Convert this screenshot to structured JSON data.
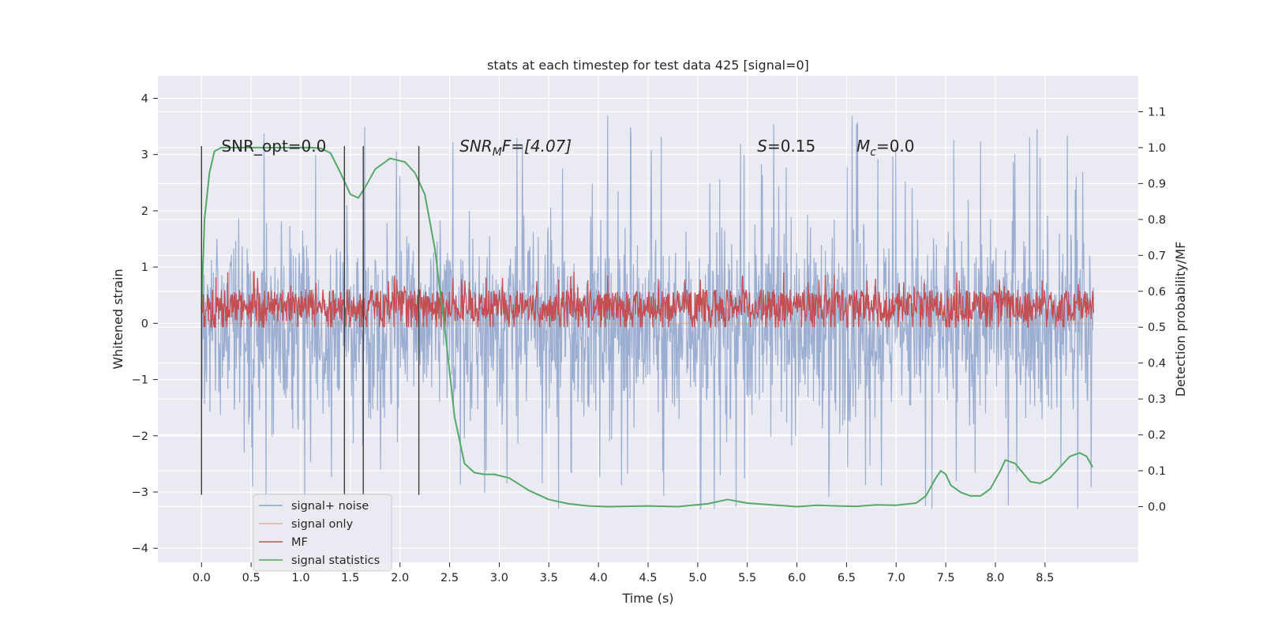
{
  "chart_data": {
    "type": "line",
    "title": "stats at each timestep for test data 425 [signal=0]",
    "xlabel": "Time (s)",
    "ylabel": "Whitened strain",
    "y2label": "Detection probability/MF",
    "xlim": [
      -0.44,
      9.44
    ],
    "ylim": [
      -4.25,
      4.4
    ],
    "y2lim": [
      -0.155,
      1.2
    ],
    "x_ticks": [
      0.0,
      0.5,
      1.0,
      1.5,
      2.0,
      2.5,
      3.0,
      3.5,
      4.0,
      4.5,
      5.0,
      5.5,
      6.0,
      6.5,
      7.0,
      7.5,
      8.0,
      8.5
    ],
    "x_tick_labels": [
      "0.0",
      "0.5",
      "1.0",
      "1.5",
      "2.0",
      "2.5",
      "3.0",
      "3.5",
      "4.0",
      "4.5",
      "5.0",
      "5.5",
      "6.0",
      "6.5",
      "7.0",
      "7.5",
      "8.0",
      "8.5"
    ],
    "y_ticks": [
      4,
      3,
      2,
      1,
      0,
      -1,
      -2,
      -3,
      -4
    ],
    "y_tick_labels": [
      "4",
      "3",
      "2",
      "1",
      "0",
      "−1",
      "−2",
      "−3",
      "−4"
    ],
    "y2_ticks": [
      1.1,
      1.0,
      0.9,
      0.8,
      0.7,
      0.6,
      0.5,
      0.4,
      0.3,
      0.2,
      0.1,
      0.0
    ],
    "y2_tick_labels": [
      "1.1",
      "1.0",
      "0.9",
      "0.8",
      "0.7",
      "0.6",
      "0.5",
      "0.4",
      "0.3",
      "0.2",
      "0.1",
      "0.0"
    ],
    "grid": true,
    "legend_position": "lower-left",
    "vertical_markers": [
      0.0,
      1.44,
      1.63,
      2.19
    ],
    "vertical_marker_range": [
      -3.05,
      3.15
    ],
    "annotations": [
      {
        "text": "SNR_opt=0.0",
        "x": 0.2,
        "y": 3.05
      },
      {
        "text": "SNR",
        "sub": "M",
        "tail": "F=[4.07]",
        "x": 2.6,
        "y": 3.05,
        "italic": true
      },
      {
        "text": "S",
        "tail": "=0.15",
        "x": 5.6,
        "y": 3.05,
        "italic": true
      },
      {
        "text": "M",
        "sub": "c",
        "tail": "=0.0",
        "x": 6.6,
        "y": 3.05,
        "italic": true
      }
    ],
    "series": [
      {
        "name": "signal+ noise",
        "axis": "left",
        "color": "#4c72b0",
        "opacity": 0.5,
        "description_range": [
          -3.3,
          4.0
        ],
        "x_range": [
          0.0,
          8.99
        ],
        "samples": 1800
      },
      {
        "name": "signal only",
        "axis": "left",
        "color": "#dd8452",
        "opacity": 0.5,
        "x": [
          0.0,
          8.99
        ],
        "y": [
          0.0,
          0.0
        ]
      },
      {
        "name": "MF",
        "axis": "right",
        "color": "#c44e52",
        "baseline": 0.5,
        "range": [
          0.5,
          0.63
        ],
        "peak": 0.66,
        "x_range": [
          0.0,
          8.99
        ],
        "samples": 1800
      },
      {
        "name": "signal statistics",
        "axis": "right",
        "color": "#55a868",
        "x": [
          0.0,
          0.03,
          0.08,
          0.13,
          0.2,
          0.35,
          0.6,
          0.8,
          1.0,
          1.1,
          1.2,
          1.3,
          1.4,
          1.5,
          1.58,
          1.65,
          1.75,
          1.9,
          2.05,
          2.15,
          2.25,
          2.35,
          2.45,
          2.55,
          2.65,
          2.75,
          2.85,
          2.95,
          3.1,
          3.3,
          3.5,
          3.7,
          3.9,
          4.1,
          4.5,
          4.8,
          5.1,
          5.3,
          5.5,
          5.8,
          6.0,
          6.2,
          6.4,
          6.6,
          6.8,
          7.0,
          7.2,
          7.3,
          7.4,
          7.45,
          7.5,
          7.55,
          7.65,
          7.75,
          7.85,
          7.95,
          8.05,
          8.1,
          8.2,
          8.35,
          8.45,
          8.55,
          8.65,
          8.75,
          8.85,
          8.92,
          8.98
        ],
        "y": [
          0.55,
          0.8,
          0.93,
          0.99,
          1.0,
          1.0,
          1.0,
          1.0,
          1.0,
          1.0,
          0.998,
          0.985,
          0.93,
          0.87,
          0.86,
          0.89,
          0.94,
          0.97,
          0.96,
          0.93,
          0.87,
          0.72,
          0.5,
          0.25,
          0.12,
          0.095,
          0.09,
          0.09,
          0.08,
          0.045,
          0.02,
          0.008,
          0.002,
          0.0,
          0.002,
          0.0,
          0.008,
          0.02,
          0.01,
          0.004,
          0.0,
          0.004,
          0.002,
          0.001,
          0.005,
          0.004,
          0.01,
          0.03,
          0.08,
          0.1,
          0.09,
          0.06,
          0.04,
          0.03,
          0.03,
          0.05,
          0.1,
          0.13,
          0.12,
          0.07,
          0.065,
          0.08,
          0.11,
          0.14,
          0.15,
          0.14,
          0.11
        ]
      }
    ]
  }
}
